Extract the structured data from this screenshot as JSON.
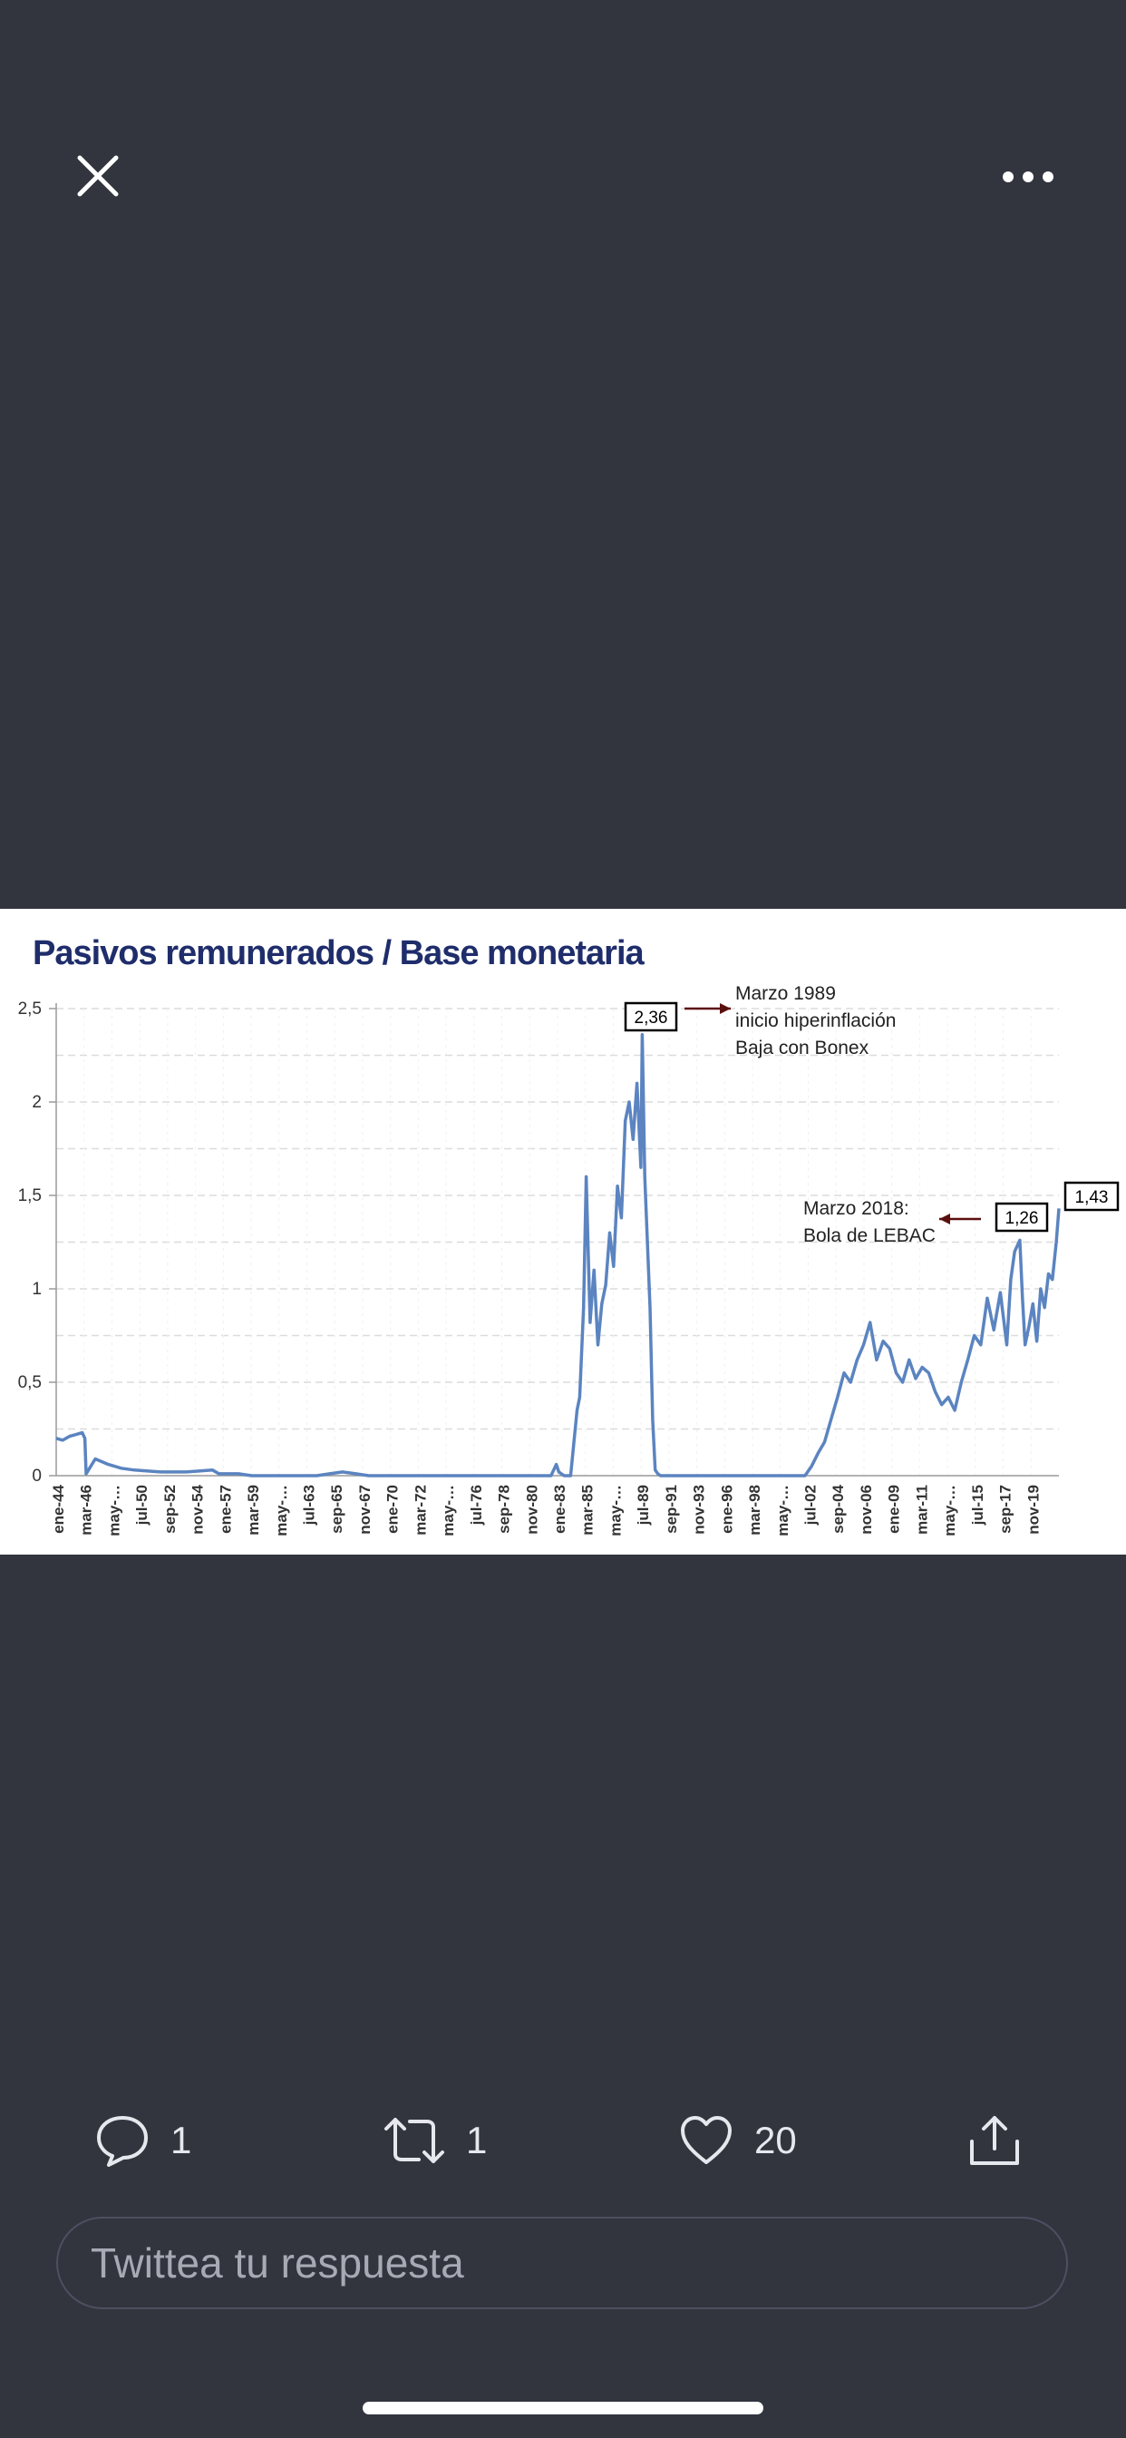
{
  "topbar": {
    "close_icon": "close-icon",
    "more_icon": "more-horizontal-icon"
  },
  "chart_data": {
    "type": "line",
    "title": "Pasivos remunerados / Base monetaria",
    "xlabel": "",
    "ylabel": "",
    "ylim": [
      0,
      2.5
    ],
    "y_ticks": [
      "0",
      "0,5",
      "1",
      "1,5",
      "2",
      "2,5"
    ],
    "x_tick_labels": [
      "ene-44",
      "mar-46",
      "may-…",
      "jul-50",
      "sep-52",
      "nov-54",
      "ene-57",
      "mar-59",
      "may-…",
      "jul-63",
      "sep-65",
      "nov-67",
      "ene-70",
      "mar-72",
      "may-…",
      "jul-76",
      "sep-78",
      "nov-80",
      "ene-83",
      "mar-85",
      "may-…",
      "jul-89",
      "sep-91",
      "nov-93",
      "ene-96",
      "mar-98",
      "may-…",
      "jul-02",
      "sep-04",
      "nov-06",
      "ene-09",
      "mar-11",
      "may-…",
      "jul-15",
      "sep-17",
      "nov-19"
    ],
    "grid": true,
    "line_color": "#5b84c0",
    "series": [
      {
        "x": [
          1944.0,
          1944.5,
          1945.0,
          1945.5,
          1946.0,
          1946.2,
          1946.3,
          1947.0,
          1948.0,
          1949.0,
          1950.0,
          1952.0,
          1954.0,
          1956.0,
          1956.5,
          1957.0,
          1958.0,
          1959.0,
          1962.0,
          1964.0,
          1965.0,
          1966.0,
          1967.0,
          1968.0,
          1970.0,
          1975.0,
          1980.0,
          1982.0,
          1982.4,
          1982.6,
          1983.0,
          1983.5,
          1984.0,
          1984.2,
          1984.5,
          1984.7,
          1985.0,
          1985.3,
          1985.6,
          1985.9,
          1986.2,
          1986.5,
          1986.8,
          1987.1,
          1987.4,
          1987.7,
          1988.0,
          1988.3,
          1988.6,
          1988.9,
          1989.0,
          1989.2,
          1989.4,
          1989.6,
          1989.8,
          1990.0,
          1990.2,
          1990.4,
          1990.6,
          1991.0,
          1992.0,
          1995.0,
          2000.0,
          2001.5,
          2002.0,
          2002.5,
          2003.0,
          2003.5,
          2004.0,
          2004.5,
          2005.0,
          2005.5,
          2006.0,
          2006.5,
          2007.0,
          2007.5,
          2008.0,
          2008.5,
          2009.0,
          2009.5,
          2010.0,
          2010.5,
          2011.0,
          2011.5,
          2012.0,
          2012.5,
          2013.0,
          2013.5,
          2014.0,
          2014.5,
          2015.0,
          2015.5,
          2016.0,
          2016.5,
          2017.0,
          2017.3,
          2017.6,
          2018.0,
          2018.2,
          2018.4,
          2018.7,
          2019.0,
          2019.3,
          2019.6,
          2019.9,
          2020.2,
          2020.5,
          2020.8,
          2021.0
        ],
        "y": [
          0.2,
          0.19,
          0.21,
          0.22,
          0.23,
          0.2,
          0.01,
          0.09,
          0.06,
          0.04,
          0.03,
          0.02,
          0.02,
          0.03,
          0.01,
          0.01,
          0.01,
          0.0,
          0.0,
          0.0,
          0.01,
          0.02,
          0.01,
          0.0,
          0.0,
          0.0,
          0.0,
          0.0,
          0.06,
          0.02,
          0.0,
          0.0,
          0.35,
          0.42,
          0.9,
          1.6,
          0.82,
          1.1,
          0.7,
          0.92,
          1.02,
          1.3,
          1.12,
          1.55,
          1.38,
          1.9,
          2.0,
          1.8,
          2.1,
          1.65,
          2.36,
          1.6,
          1.25,
          0.9,
          0.3,
          0.03,
          0.01,
          0.0,
          0.0,
          0.0,
          0.0,
          0.0,
          0.0,
          0.0,
          0.05,
          0.12,
          0.18,
          0.3,
          0.42,
          0.55,
          0.5,
          0.62,
          0.7,
          0.82,
          0.62,
          0.72,
          0.68,
          0.55,
          0.5,
          0.62,
          0.52,
          0.58,
          0.55,
          0.45,
          0.38,
          0.42,
          0.35,
          0.5,
          0.62,
          0.75,
          0.7,
          0.95,
          0.78,
          0.98,
          0.7,
          1.05,
          1.2,
          1.26,
          0.95,
          0.7,
          0.8,
          0.92,
          0.72,
          1.0,
          0.9,
          1.08,
          1.05,
          1.25,
          1.43
        ]
      }
    ],
    "annotations": [
      {
        "label": "2,36",
        "x": 1989.0,
        "y": 2.36
      },
      {
        "label": "1,26",
        "x": 2018.0,
        "y": 1.26
      },
      {
        "label": "1,43",
        "x": 2021.0,
        "y": 1.43
      },
      {
        "text_lines": [
          "Marzo 1989",
          "inicio hiperinflación",
          "Baja con Bonex"
        ]
      },
      {
        "text_lines": [
          "Marzo 2018:",
          "Bola de LEBAC"
        ]
      }
    ]
  },
  "actions": {
    "reply": {
      "icon": "reply-icon",
      "count": "1"
    },
    "retweet": {
      "icon": "retweet-icon",
      "count": "1"
    },
    "like": {
      "icon": "heart-icon",
      "count": "20"
    },
    "share": {
      "icon": "share-icon"
    }
  },
  "reply_box": {
    "placeholder": "Twittea tu respuesta"
  }
}
